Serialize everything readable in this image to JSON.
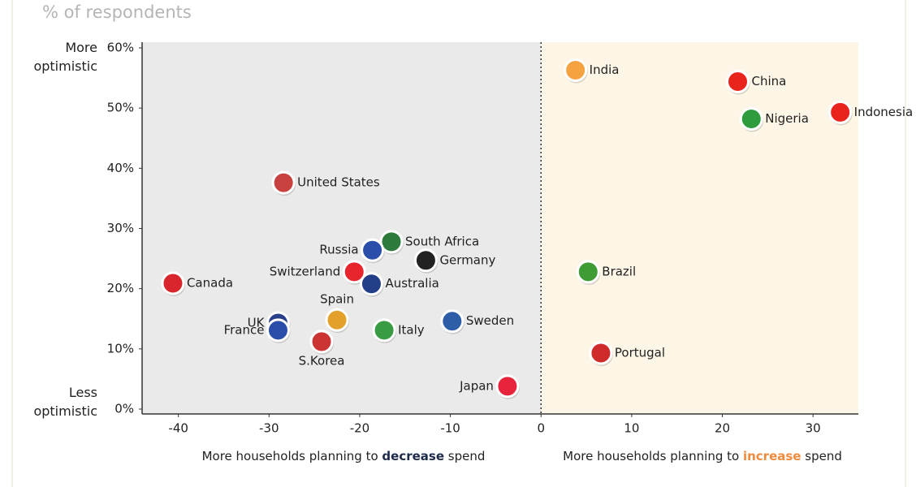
{
  "chart_data": {
    "type": "scatter",
    "subtitle": "% of respondents",
    "y_annotation_top": "More optimistic",
    "y_annotation_bottom": "Less optimistic",
    "x_caption_left": [
      "More households planning to ",
      "decrease",
      " spend"
    ],
    "x_caption_right": [
      "More households planning to ",
      "increase",
      " spend"
    ],
    "categories": [
      "India",
      "China",
      "Nigeria",
      "Indonesia",
      "Brazil",
      "Portugal",
      "Japan",
      "Sweden",
      "Italy",
      "Germany",
      "South Africa",
      "Russia",
      "Switzerland",
      "Australia",
      "Spain",
      "UK",
      "France",
      "S.Korea",
      "United States",
      "Canada"
    ],
    "x": [
      3.8,
      21.7,
      23.2,
      33,
      5.2,
      6.6,
      -3.7,
      -9.8,
      -17.3,
      -12.7,
      -16.5,
      -18.6,
      -20.6,
      -18.7,
      -22.5,
      -29,
      -29,
      -24.2,
      -28.4,
      -40.6
    ],
    "values": [
      56.3,
      54.4,
      48.2,
      49.3,
      22.8,
      9.3,
      3.8,
      14.6,
      13.1,
      24.7,
      27.8,
      26.4,
      22.8,
      20.8,
      14.8,
      14.3,
      13.1,
      11.2,
      37.6,
      20.9
    ],
    "colors": [
      "#f4a340",
      "#e8241c",
      "#2e9b3d",
      "#e8241c",
      "#3f9c35",
      "#cf2b2b",
      "#e8243c",
      "#2f5ea8",
      "#3a9b45",
      "#222222",
      "#2c7b3c",
      "#2a4eaa",
      "#e8242c",
      "#233f88",
      "#e3a12c",
      "#2a3f8a",
      "#2a4eaa",
      "#cc3333",
      "#c9413f",
      "#d8262c"
    ],
    "xlim": [
      -44,
      35
    ],
    "ylim": [
      0,
      60
    ],
    "xticks": [
      -40,
      -30,
      -20,
      -10,
      0,
      10,
      20,
      30
    ],
    "yticks": [
      {
        "value": 0,
        "label": "0%"
      },
      {
        "value": 10,
        "label": "10%"
      },
      {
        "value": 20,
        "label": "20%"
      },
      {
        "value": 30,
        "label": "30%"
      },
      {
        "value": 40,
        "label": "40%"
      },
      {
        "value": 50,
        "label": "50%"
      },
      {
        "value": 60,
        "label": "60%"
      }
    ],
    "left_region_color": "#ebeaea",
    "right_region_color": "#fdf6e7",
    "emphasis_left_color": "#1e2a4a",
    "emphasis_right_color": "#f08a3c"
  }
}
